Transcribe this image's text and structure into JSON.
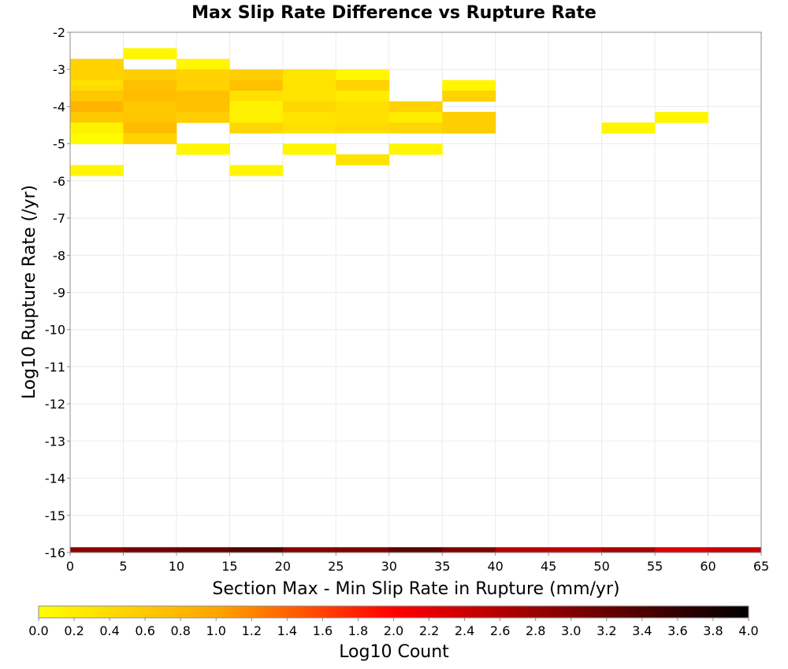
{
  "chart_data": {
    "type": "heatmap",
    "title": "Max Slip Rate Difference vs Rupture Rate",
    "xlabel": "Section Max - Min Slip Rate in Rupture (mm/yr)",
    "ylabel": "Log10 Rupture Rate (/yr)",
    "xlim": [
      0,
      65
    ],
    "ylim": [
      -16,
      -2
    ],
    "x_ticks": [
      "0",
      "5",
      "10",
      "15",
      "20",
      "25",
      "30",
      "35",
      "40",
      "45",
      "50",
      "55",
      "60",
      "65"
    ],
    "y_ticks": [
      "-2",
      "-3",
      "-4",
      "-5",
      "-6",
      "-7",
      "-8",
      "-9",
      "-10",
      "-11",
      "-12",
      "-13",
      "-14",
      "-15",
      "-16"
    ],
    "x_bin_width": 5,
    "y_bin_height": 0.142857,
    "grid": true,
    "colorbar": {
      "label": "Log10 Count",
      "range": [
        0,
        4
      ],
      "ticks": [
        "0.0",
        "0.2",
        "0.4",
        "0.6",
        "0.8",
        "1.0",
        "1.2",
        "1.4",
        "1.6",
        "1.8",
        "2.0",
        "2.2",
        "2.4",
        "2.6",
        "2.8",
        "3.0",
        "3.2",
        "3.4",
        "3.6",
        "3.8",
        "4.0"
      ],
      "colors": [
        "#ffff00",
        "#ffa500",
        "#ff0000",
        "#800000",
        "#000000"
      ]
    },
    "cells": [
      {
        "x": 0,
        "y": -2.786,
        "v": 0.5
      },
      {
        "x": 0,
        "y": -2.929,
        "v": 0.5
      },
      {
        "x": 0,
        "y": -3.071,
        "v": 0.5
      },
      {
        "x": 0,
        "y": -3.214,
        "v": 0.5
      },
      {
        "x": 0,
        "y": -3.357,
        "v": 0.35
      },
      {
        "x": 0,
        "y": -3.5,
        "v": 0.4
      },
      {
        "x": 0,
        "y": -3.643,
        "v": 0.6
      },
      {
        "x": 0,
        "y": -3.786,
        "v": 0.6
      },
      {
        "x": 0,
        "y": -3.929,
        "v": 0.85
      },
      {
        "x": 0,
        "y": -4.071,
        "v": 0.85
      },
      {
        "x": 0,
        "y": -4.214,
        "v": 0.6
      },
      {
        "x": 0,
        "y": -4.357,
        "v": 0.6
      },
      {
        "x": 0,
        "y": -4.5,
        "v": 0.15
      },
      {
        "x": 0,
        "y": -4.643,
        "v": 0.15
      },
      {
        "x": 0,
        "y": -4.786,
        "v": 0.05
      },
      {
        "x": 0,
        "y": -4.929,
        "v": 0.05
      },
      {
        "x": 0,
        "y": -5.643,
        "v": 0.1
      },
      {
        "x": 0,
        "y": -5.786,
        "v": 0.1
      },
      {
        "x": 5,
        "y": -2.5,
        "v": 0.1
      },
      {
        "x": 5,
        "y": -2.643,
        "v": 0.1
      },
      {
        "x": 5,
        "y": -3.071,
        "v": 0.55
      },
      {
        "x": 5,
        "y": -3.214,
        "v": 0.55
      },
      {
        "x": 5,
        "y": -3.357,
        "v": 0.7
      },
      {
        "x": 5,
        "y": -3.5,
        "v": 0.7
      },
      {
        "x": 5,
        "y": -3.643,
        "v": 0.75
      },
      {
        "x": 5,
        "y": -3.786,
        "v": 0.75
      },
      {
        "x": 5,
        "y": -3.929,
        "v": 0.6
      },
      {
        "x": 5,
        "y": -4.071,
        "v": 0.6
      },
      {
        "x": 5,
        "y": -4.214,
        "v": 0.65
      },
      {
        "x": 5,
        "y": -4.357,
        "v": 0.65
      },
      {
        "x": 5,
        "y": -4.5,
        "v": 0.75
      },
      {
        "x": 5,
        "y": -4.643,
        "v": 0.75
      },
      {
        "x": 5,
        "y": -4.786,
        "v": 0.5
      },
      {
        "x": 5,
        "y": -4.929,
        "v": 0.5
      },
      {
        "x": 10,
        "y": -2.786,
        "v": 0.1
      },
      {
        "x": 10,
        "y": -2.929,
        "v": 0.1
      },
      {
        "x": 10,
        "y": -3.071,
        "v": 0.5
      },
      {
        "x": 10,
        "y": -3.214,
        "v": 0.5
      },
      {
        "x": 10,
        "y": -3.357,
        "v": 0.5
      },
      {
        "x": 10,
        "y": -3.5,
        "v": 0.5
      },
      {
        "x": 10,
        "y": -3.643,
        "v": 0.7
      },
      {
        "x": 10,
        "y": -3.786,
        "v": 0.7
      },
      {
        "x": 10,
        "y": -3.929,
        "v": 0.7
      },
      {
        "x": 10,
        "y": -4.071,
        "v": 0.7
      },
      {
        "x": 10,
        "y": -4.214,
        "v": 0.55
      },
      {
        "x": 10,
        "y": -4.357,
        "v": 0.55
      },
      {
        "x": 10,
        "y": -5.071,
        "v": 0.1
      },
      {
        "x": 10,
        "y": -5.214,
        "v": 0.1
      },
      {
        "x": 15,
        "y": -3.071,
        "v": 0.55
      },
      {
        "x": 15,
        "y": -3.214,
        "v": 0.55
      },
      {
        "x": 15,
        "y": -3.357,
        "v": 0.7
      },
      {
        "x": 15,
        "y": -3.5,
        "v": 0.7
      },
      {
        "x": 15,
        "y": -3.643,
        "v": 0.35
      },
      {
        "x": 15,
        "y": -3.786,
        "v": 0.35
      },
      {
        "x": 15,
        "y": -3.929,
        "v": 0.15
      },
      {
        "x": 15,
        "y": -4.071,
        "v": 0.15
      },
      {
        "x": 15,
        "y": -4.214,
        "v": 0.15
      },
      {
        "x": 15,
        "y": -4.357,
        "v": 0.15
      },
      {
        "x": 15,
        "y": -4.5,
        "v": 0.45
      },
      {
        "x": 15,
        "y": -4.643,
        "v": 0.45
      },
      {
        "x": 15,
        "y": -5.643,
        "v": 0.1
      },
      {
        "x": 15,
        "y": -5.786,
        "v": 0.1
      },
      {
        "x": 20,
        "y": -3.071,
        "v": 0.3
      },
      {
        "x": 20,
        "y": -3.214,
        "v": 0.3
      },
      {
        "x": 20,
        "y": -3.357,
        "v": 0.3
      },
      {
        "x": 20,
        "y": -3.5,
        "v": 0.3
      },
      {
        "x": 20,
        "y": -3.643,
        "v": 0.3
      },
      {
        "x": 20,
        "y": -3.786,
        "v": 0.3
      },
      {
        "x": 20,
        "y": -3.929,
        "v": 0.45
      },
      {
        "x": 20,
        "y": -4.071,
        "v": 0.45
      },
      {
        "x": 20,
        "y": -4.214,
        "v": 0.3
      },
      {
        "x": 20,
        "y": -4.357,
        "v": 0.3
      },
      {
        "x": 20,
        "y": -4.5,
        "v": 0.35
      },
      {
        "x": 20,
        "y": -4.643,
        "v": 0.35
      },
      {
        "x": 20,
        "y": -5.071,
        "v": 0.1
      },
      {
        "x": 20,
        "y": -5.214,
        "v": 0.1
      },
      {
        "x": 25,
        "y": -3.071,
        "v": 0.1
      },
      {
        "x": 25,
        "y": -3.214,
        "v": 0.1
      },
      {
        "x": 25,
        "y": -3.357,
        "v": 0.5
      },
      {
        "x": 25,
        "y": -3.5,
        "v": 0.5
      },
      {
        "x": 25,
        "y": -3.643,
        "v": 0.2
      },
      {
        "x": 25,
        "y": -3.786,
        "v": 0.2
      },
      {
        "x": 25,
        "y": -3.929,
        "v": 0.35
      },
      {
        "x": 25,
        "y": -4.071,
        "v": 0.35
      },
      {
        "x": 25,
        "y": -4.214,
        "v": 0.35
      },
      {
        "x": 25,
        "y": -4.357,
        "v": 0.35
      },
      {
        "x": 25,
        "y": -4.5,
        "v": 0.4
      },
      {
        "x": 25,
        "y": -4.643,
        "v": 0.4
      },
      {
        "x": 25,
        "y": -5.357,
        "v": 0.3
      },
      {
        "x": 25,
        "y": -5.5,
        "v": 0.3
      },
      {
        "x": 30,
        "y": -3.929,
        "v": 0.5
      },
      {
        "x": 30,
        "y": -4.071,
        "v": 0.5
      },
      {
        "x": 30,
        "y": -4.214,
        "v": 0.2
      },
      {
        "x": 30,
        "y": -4.357,
        "v": 0.2
      },
      {
        "x": 30,
        "y": -4.5,
        "v": 0.45
      },
      {
        "x": 30,
        "y": -4.643,
        "v": 0.45
      },
      {
        "x": 30,
        "y": -5.071,
        "v": 0.1
      },
      {
        "x": 30,
        "y": -5.214,
        "v": 0.1
      },
      {
        "x": 35,
        "y": -3.357,
        "v": 0.1
      },
      {
        "x": 35,
        "y": -3.5,
        "v": 0.1
      },
      {
        "x": 35,
        "y": -3.643,
        "v": 0.5
      },
      {
        "x": 35,
        "y": -3.786,
        "v": 0.5
      },
      {
        "x": 35,
        "y": -4.214,
        "v": 0.55
      },
      {
        "x": 35,
        "y": -4.357,
        "v": 0.55
      },
      {
        "x": 35,
        "y": -4.5,
        "v": 0.55
      },
      {
        "x": 35,
        "y": -4.643,
        "v": 0.55
      },
      {
        "x": 50,
        "y": -4.5,
        "v": 0.1
      },
      {
        "x": 50,
        "y": -4.643,
        "v": 0.1
      },
      {
        "x": 55,
        "y": -4.214,
        "v": 0.1
      },
      {
        "x": 55,
        "y": -4.357,
        "v": 0.1
      },
      {
        "x": 0,
        "y": -15.929,
        "v": 2.9
      },
      {
        "x": 5,
        "y": -15.929,
        "v": 3.1
      },
      {
        "x": 10,
        "y": -15.929,
        "v": 3.2
      },
      {
        "x": 15,
        "y": -15.929,
        "v": 3.35
      },
      {
        "x": 20,
        "y": -15.929,
        "v": 2.95
      },
      {
        "x": 25,
        "y": -15.929,
        "v": 3.0
      },
      {
        "x": 30,
        "y": -15.929,
        "v": 3.3
      },
      {
        "x": 35,
        "y": -15.929,
        "v": 3.0
      },
      {
        "x": 40,
        "y": -15.929,
        "v": 2.55
      },
      {
        "x": 45,
        "y": -15.929,
        "v": 2.5
      },
      {
        "x": 50,
        "y": -15.929,
        "v": 2.7
      },
      {
        "x": 55,
        "y": -15.929,
        "v": 2.3
      },
      {
        "x": 60,
        "y": -15.929,
        "v": 2.45
      }
    ]
  }
}
